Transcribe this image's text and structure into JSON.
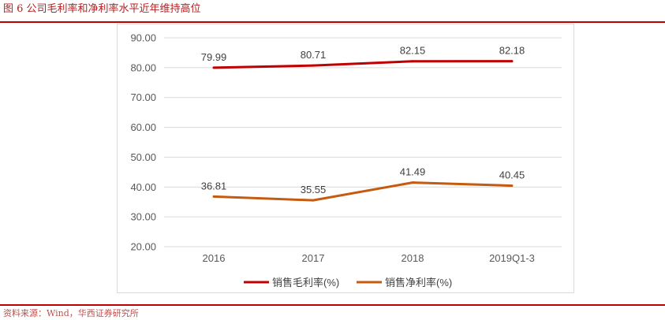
{
  "figure_title": "图 6   公司毛利率和净利率水平近年维持高位",
  "source": "资料来源：Wind，华西证券研究所",
  "colors": {
    "gross": "#c00000",
    "net": "#c55a11",
    "accent": "#c00000"
  },
  "chart_data": {
    "type": "line",
    "categories": [
      "2016",
      "2017",
      "2018",
      "2019Q1-3"
    ],
    "y_ticks": [
      "20.00",
      "30.00",
      "40.00",
      "50.00",
      "60.00",
      "70.00",
      "80.00",
      "90.00"
    ],
    "ylim": [
      20,
      90
    ],
    "grid": true,
    "legend_position": "bottom",
    "series": [
      {
        "name": "销售毛利率(%)",
        "values": [
          79.99,
          80.71,
          82.15,
          82.18
        ],
        "labels": [
          "79.99",
          "80.71",
          "82.15",
          "82.18"
        ]
      },
      {
        "name": "销售净利率(%)",
        "values": [
          36.81,
          35.55,
          41.49,
          40.45
        ],
        "labels": [
          "36.81",
          "35.55",
          "41.49",
          "40.45"
        ]
      }
    ]
  }
}
